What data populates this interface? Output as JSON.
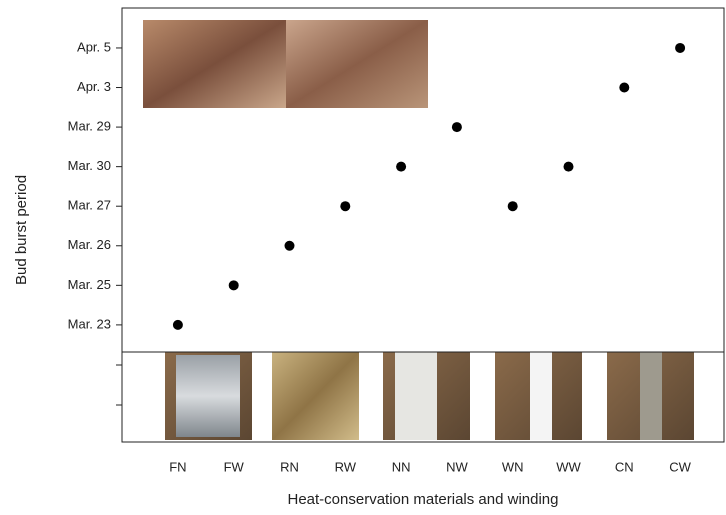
{
  "chart_data": {
    "type": "scatter",
    "x_label": "Heat-conservation materials and winding",
    "y_label": "Bud burst period",
    "categories": [
      "FN",
      "FW",
      "RN",
      "RW",
      "NN",
      "NW",
      "WN",
      "WW",
      "CN",
      "CW"
    ],
    "values": [
      1,
      2,
      3,
      4,
      5,
      6,
      4,
      5,
      7,
      8
    ],
    "color": "#000000",
    "ylim": [
      -1.96,
      9.01
    ],
    "yticks": [
      {
        "value": 1,
        "label": "Mar. 23"
      },
      {
        "value": 2,
        "label": "Mar. 25"
      },
      {
        "value": 3,
        "label": "Mar. 26"
      },
      {
        "value": 4,
        "label": "Mar. 27"
      },
      {
        "value": 5,
        "label": "Mar. 30"
      },
      {
        "value": 6,
        "label": "Mar. 29"
      },
      {
        "value": 7,
        "label": "Apr. 3"
      },
      {
        "value": 8,
        "label": "Apr. 5"
      }
    ]
  }
}
